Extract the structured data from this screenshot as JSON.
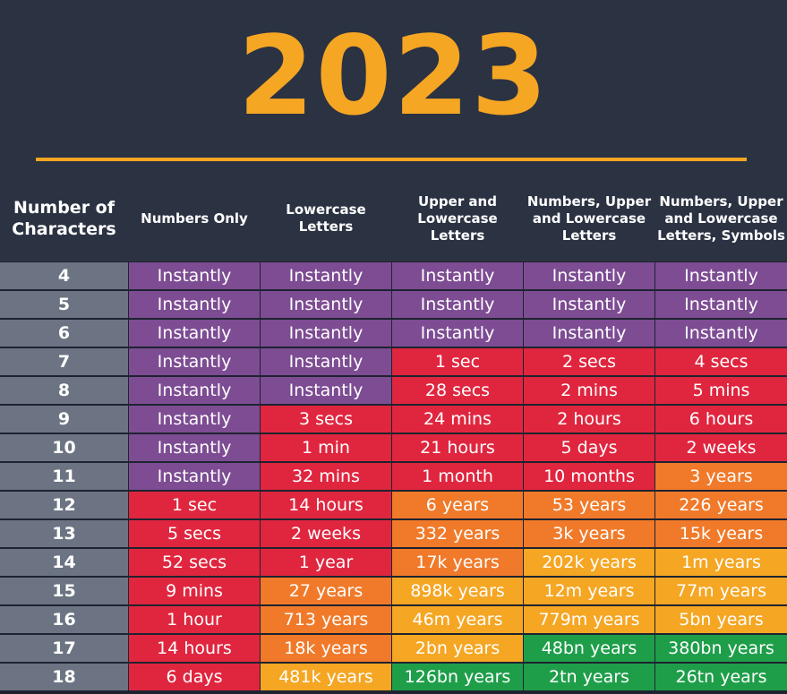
{
  "title": "2023",
  "chart_data": {
    "type": "table",
    "title": "2023",
    "columns": [
      "Number of Characters",
      "Numbers Only",
      "Lowercase Letters",
      "Upper and Lowercase Letters",
      "Numbers, Upper and Lowercase Letters",
      "Numbers, Upper and Lowercase Letters, Symbols"
    ],
    "header_lines": [
      [
        "Number of",
        "Characters"
      ],
      [
        "Numbers Only"
      ],
      [
        "Lowercase",
        "Letters"
      ],
      [
        "Upper and",
        "Lowercase",
        "Letters"
      ],
      [
        "Numbers, Upper",
        "and Lowercase",
        "Letters"
      ],
      [
        "Numbers, Upper",
        "and Lowercase",
        "Letters, Symbols"
      ]
    ],
    "rows": [
      {
        "n": "4",
        "values": [
          "Instantly",
          "Instantly",
          "Instantly",
          "Instantly",
          "Instantly"
        ],
        "levels": [
          "purple",
          "purple",
          "purple",
          "purple",
          "purple"
        ]
      },
      {
        "n": "5",
        "values": [
          "Instantly",
          "Instantly",
          "Instantly",
          "Instantly",
          "Instantly"
        ],
        "levels": [
          "purple",
          "purple",
          "purple",
          "purple",
          "purple"
        ]
      },
      {
        "n": "6",
        "values": [
          "Instantly",
          "Instantly",
          "Instantly",
          "Instantly",
          "Instantly"
        ],
        "levels": [
          "purple",
          "purple",
          "purple",
          "purple",
          "purple"
        ]
      },
      {
        "n": "7",
        "values": [
          "Instantly",
          "Instantly",
          "1 sec",
          "2 secs",
          "4 secs"
        ],
        "levels": [
          "purple",
          "purple",
          "red",
          "red",
          "red"
        ]
      },
      {
        "n": "8",
        "values": [
          "Instantly",
          "Instantly",
          "28 secs",
          "2 mins",
          "5 mins"
        ],
        "levels": [
          "purple",
          "purple",
          "red",
          "red",
          "red"
        ]
      },
      {
        "n": "9",
        "values": [
          "Instantly",
          "3 secs",
          "24 mins",
          "2 hours",
          "6 hours"
        ],
        "levels": [
          "purple",
          "red",
          "red",
          "red",
          "red"
        ]
      },
      {
        "n": "10",
        "values": [
          "Instantly",
          "1 min",
          "21 hours",
          "5 days",
          "2 weeks"
        ],
        "levels": [
          "purple",
          "red",
          "red",
          "red",
          "red"
        ]
      },
      {
        "n": "11",
        "values": [
          "Instantly",
          "32 mins",
          "1 month",
          "10 months",
          "3 years"
        ],
        "levels": [
          "purple",
          "red",
          "red",
          "red",
          "orange"
        ]
      },
      {
        "n": "12",
        "values": [
          "1 sec",
          "14 hours",
          "6 years",
          "53 years",
          "226 years"
        ],
        "levels": [
          "red",
          "red",
          "orange",
          "orange",
          "orange"
        ]
      },
      {
        "n": "13",
        "values": [
          "5 secs",
          "2 weeks",
          "332 years",
          "3k years",
          "15k years"
        ],
        "levels": [
          "red",
          "red",
          "orange",
          "orange",
          "orange"
        ]
      },
      {
        "n": "14",
        "values": [
          "52 secs",
          "1 year",
          "17k years",
          "202k years",
          "1m years"
        ],
        "levels": [
          "red",
          "red",
          "orange",
          "yellow",
          "yellow"
        ]
      },
      {
        "n": "15",
        "values": [
          "9 mins",
          "27 years",
          "898k years",
          "12m years",
          "77m years"
        ],
        "levels": [
          "red",
          "orange",
          "yellow",
          "yellow",
          "yellow"
        ]
      },
      {
        "n": "16",
        "values": [
          "1 hour",
          "713 years",
          "46m years",
          "779m years",
          "5bn years"
        ],
        "levels": [
          "red",
          "orange",
          "yellow",
          "yellow",
          "yellow"
        ]
      },
      {
        "n": "17",
        "values": [
          "14 hours",
          "18k years",
          "2bn years",
          "48bn years",
          "380bn years"
        ],
        "levels": [
          "red",
          "orange",
          "yellow",
          "green",
          "green"
        ]
      },
      {
        "n": "18",
        "values": [
          "6 days",
          "481k years",
          "126bn years",
          "2tn years",
          "26tn years"
        ],
        "levels": [
          "red",
          "yellow",
          "green",
          "green",
          "green"
        ]
      }
    ]
  },
  "colors": {
    "title": "#f5a623",
    "purple": "#7d4c93",
    "red": "#e0263f",
    "orange": "#f07a2a",
    "yellow": "#f5a623",
    "green": "#1f9e4a",
    "number_column": "#6c7483"
  }
}
